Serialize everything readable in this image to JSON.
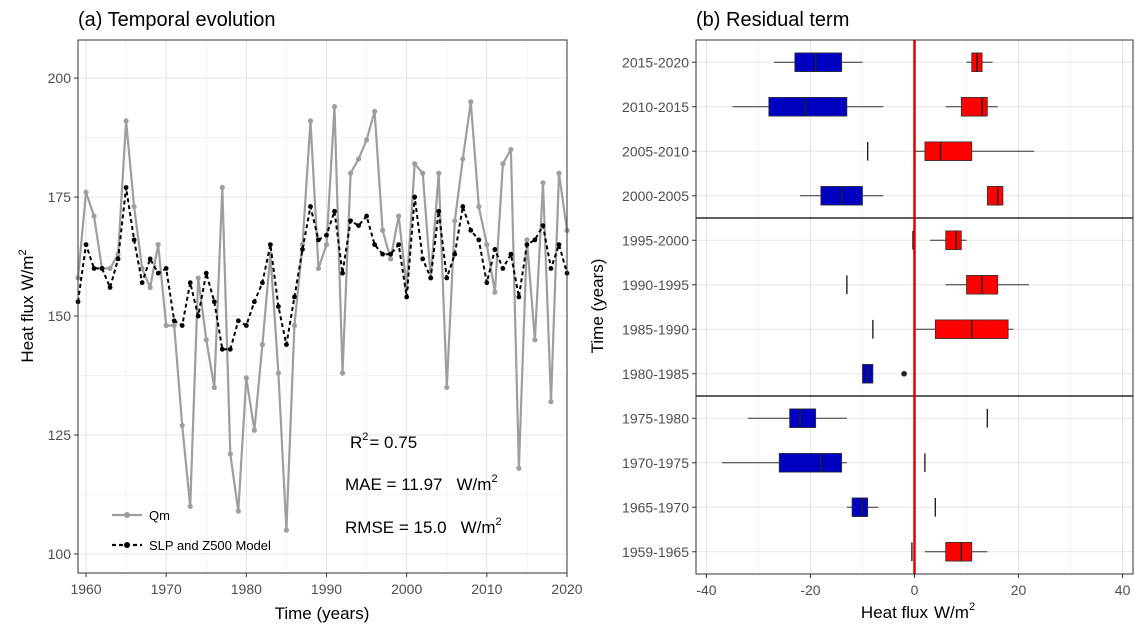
{
  "chart_data": [
    {
      "type": "line",
      "title": "(a) Temporal evolution",
      "xlabel": "Time (years)",
      "ylabel_main": "Heat flux",
      "ylabel_unit": "W/m",
      "ylabel_sup": "2",
      "xlim": [
        1959,
        2020
      ],
      "ylim": [
        96,
        208
      ],
      "xticks": [
        1960,
        1970,
        1980,
        1990,
        2000,
        2010,
        2020
      ],
      "xtick_labels": [
        "1960",
        "1970",
        "1980",
        "1990",
        "2000",
        "2010",
        "2020"
      ],
      "yticks": [
        100,
        125,
        150,
        175,
        200
      ],
      "ytick_labels": [
        "100",
        "125",
        "150",
        "175",
        "200"
      ],
      "grid": true,
      "legend_position": "bottom-left",
      "x": [
        1959,
        1960,
        1961,
        1962,
        1963,
        1964,
        1965,
        1966,
        1967,
        1968,
        1969,
        1970,
        1971,
        1972,
        1973,
        1974,
        1975,
        1976,
        1977,
        1978,
        1979,
        1980,
        1981,
        1982,
        1983,
        1984,
        1985,
        1986,
        1987,
        1988,
        1989,
        1990,
        1991,
        1992,
        1993,
        1994,
        1995,
        1996,
        1997,
        1998,
        1999,
        2000,
        2001,
        2002,
        2003,
        2004,
        2005,
        2006,
        2007,
        2008,
        2009,
        2010,
        2011,
        2012,
        2013,
        2014,
        2015,
        2016,
        2017,
        2018,
        2019,
        2020
      ],
      "series": [
        {
          "name": "Qm",
          "color": "#9e9e9e",
          "line_style": "solid",
          "values": [
            158,
            176,
            171,
            160,
            160,
            163,
            191,
            173,
            160,
            156,
            165,
            148,
            148,
            127,
            110,
            158,
            145,
            135,
            177,
            121,
            109,
            137,
            126,
            144,
            163,
            138,
            105,
            148,
            165,
            191,
            160,
            165,
            194,
            138,
            180,
            183,
            187,
            193,
            168,
            162,
            171,
            156,
            182,
            180,
            158,
            180,
            135,
            170,
            183,
            195,
            173,
            165,
            155,
            182,
            185,
            118,
            166,
            145,
            178,
            132,
            180,
            168
          ]
        },
        {
          "name": "SLP and Z500 Model",
          "color": "#000000",
          "line_style": "dashed",
          "values": [
            153,
            165,
            160,
            160,
            156,
            162,
            177,
            166,
            157,
            162,
            159,
            160,
            149,
            148,
            157,
            150,
            159,
            153,
            143,
            143,
            149,
            148,
            153,
            157,
            165,
            152,
            144,
            154,
            164,
            173,
            166,
            167,
            172,
            159,
            170,
            169,
            171,
            165,
            163,
            163,
            165,
            154,
            175,
            162,
            158,
            172,
            158,
            163,
            173,
            168,
            166,
            157,
            164,
            160,
            163,
            154,
            165,
            166,
            169,
            160,
            165,
            159
          ]
        }
      ],
      "annotations": {
        "r2_label": "R",
        "r2_sup": "2",
        "r2_value": "= 0.75",
        "mae_text": "MAE  =  11.97",
        "rmse_text": "RMSE  =  15.0",
        "unit": "W/m",
        "unit_sup": "2"
      }
    },
    {
      "type": "boxplot",
      "title": "(b) Residual term",
      "xlabel_main": "Heat flux",
      "xlabel_unit": "W/m",
      "xlabel_sup": "2",
      "ylabel": "Time (years)",
      "xlim": [
        -42,
        42
      ],
      "xticks": [
        -40,
        -20,
        0,
        20,
        40
      ],
      "xtick_labels": [
        "-40",
        "-20",
        "0",
        "20",
        "40"
      ],
      "grid": true,
      "zero_line_color": "#e00000",
      "negative_color": "#0000c0",
      "positive_color": "#ff0000",
      "categories": [
        "2015-2020",
        "2010-2015",
        "2005-2010",
        "2000-2005",
        "1995-2000",
        "1990-1995",
        "1985-1990",
        "1980-1985",
        "1975-1980",
        "1970-1975",
        "1965-1970",
        "1959-1965"
      ],
      "group_breaks_after": [
        3,
        7
      ],
      "boxes": [
        {
          "category": "2015-2020",
          "sign": "negative",
          "whisker_low": -27,
          "q1": -23,
          "median": -19,
          "q3": -14,
          "whisker_high": -10,
          "outliers": []
        },
        {
          "category": "2015-2020",
          "sign": "positive",
          "whisker_low": 10,
          "q1": 11,
          "median": 12,
          "q3": 13,
          "whisker_high": 15,
          "outliers": []
        },
        {
          "category": "2010-2015",
          "sign": "negative",
          "whisker_low": -35,
          "q1": -28,
          "median": -21,
          "q3": -13,
          "whisker_high": -6,
          "outliers": []
        },
        {
          "category": "2010-2015",
          "sign": "positive",
          "whisker_low": 6,
          "q1": 9,
          "median": 13,
          "q3": 14,
          "whisker_high": 16,
          "outliers": []
        },
        {
          "category": "2005-2010",
          "sign": "negative",
          "whisker_low": -9,
          "q1": -9,
          "median": -9,
          "q3": -9,
          "whisker_high": -9,
          "outliers": []
        },
        {
          "category": "2005-2010",
          "sign": "positive",
          "whisker_low": 0,
          "q1": 2,
          "median": 5,
          "q3": 11,
          "whisker_high": 23,
          "outliers": []
        },
        {
          "category": "2000-2005",
          "sign": "negative",
          "whisker_low": -22,
          "q1": -18,
          "median": -14,
          "q3": -10,
          "whisker_high": -6,
          "outliers": []
        },
        {
          "category": "2000-2005",
          "sign": "positive",
          "whisker_low": 14,
          "q1": 14,
          "median": 16,
          "q3": 17,
          "whisker_high": 17,
          "outliers": []
        },
        {
          "category": "1995-2000",
          "sign": "negative",
          "whisker_low": -0.3,
          "q1": -0.3,
          "median": -0.3,
          "q3": -0.3,
          "whisker_high": -0.3,
          "outliers": []
        },
        {
          "category": "1995-2000",
          "sign": "positive",
          "whisker_low": 3,
          "q1": 6,
          "median": 8,
          "q3": 9,
          "whisker_high": 10,
          "outliers": []
        },
        {
          "category": "1990-1995",
          "sign": "negative",
          "whisker_low": -13,
          "q1": -13,
          "median": -13,
          "q3": -13,
          "whisker_high": -13,
          "outliers": []
        },
        {
          "category": "1990-1995",
          "sign": "positive",
          "whisker_low": 6,
          "q1": 10,
          "median": 13,
          "q3": 16,
          "whisker_high": 22,
          "outliers": []
        },
        {
          "category": "1985-1990",
          "sign": "negative",
          "whisker_low": -8,
          "q1": -8,
          "median": -8,
          "q3": -8,
          "whisker_high": -8,
          "outliers": []
        },
        {
          "category": "1985-1990",
          "sign": "positive",
          "whisker_low": 0,
          "q1": 4,
          "median": 11,
          "q3": 18,
          "whisker_high": 19,
          "outliers": []
        },
        {
          "category": "1980-1985",
          "sign": "negative",
          "whisker_low": -10,
          "q1": -10,
          "median": -9,
          "q3": -8,
          "whisker_high": -8,
          "outliers": [
            -2
          ]
        },
        {
          "category": "1975-1980",
          "sign": "negative",
          "whisker_low": -32,
          "q1": -24,
          "median": -22,
          "q3": -19,
          "whisker_high": -13,
          "outliers": []
        },
        {
          "category": "1975-1980",
          "sign": "positive",
          "whisker_low": 14,
          "q1": 14,
          "median": 14,
          "q3": 14,
          "whisker_high": 14,
          "outliers": []
        },
        {
          "category": "1970-1975",
          "sign": "negative",
          "whisker_low": -37,
          "q1": -26,
          "median": -18,
          "q3": -14,
          "whisker_high": -13,
          "outliers": []
        },
        {
          "category": "1970-1975",
          "sign": "positive",
          "whisker_low": 2,
          "q1": 2,
          "median": 2,
          "q3": 2,
          "whisker_high": 2,
          "outliers": []
        },
        {
          "category": "1965-1970",
          "sign": "negative",
          "whisker_low": -13,
          "q1": -12,
          "median": -10,
          "q3": -9,
          "whisker_high": -7,
          "outliers": []
        },
        {
          "category": "1965-1970",
          "sign": "positive",
          "whisker_low": 4,
          "q1": 4,
          "median": 4,
          "q3": 4,
          "whisker_high": 4,
          "outliers": []
        },
        {
          "category": "1959-1965",
          "sign": "negative",
          "whisker_low": -0.5,
          "q1": -0.5,
          "median": -0.5,
          "q3": -0.5,
          "whisker_high": -0.5,
          "outliers": []
        },
        {
          "category": "1959-1965",
          "sign": "positive",
          "whisker_low": 2,
          "q1": 6,
          "median": 9,
          "q3": 11,
          "whisker_high": 14,
          "outliers": []
        }
      ]
    }
  ]
}
